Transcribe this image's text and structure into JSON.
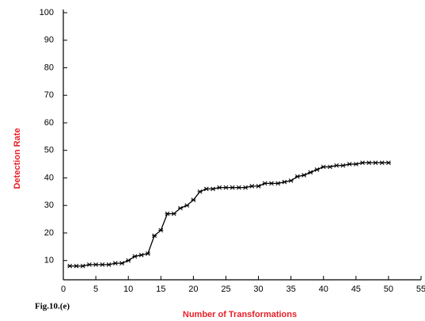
{
  "chart_data": {
    "type": "line",
    "x_label": "Number of Transformations",
    "y_label": "Detection Rate",
    "caption": "Fig.10.(e)",
    "x": [
      1,
      2,
      3,
      4,
      5,
      6,
      7,
      8,
      9,
      10,
      11,
      12,
      13,
      14,
      15,
      16,
      17,
      18,
      19,
      20,
      21,
      22,
      23,
      24,
      25,
      26,
      27,
      28,
      29,
      30,
      31,
      32,
      33,
      34,
      35,
      36,
      37,
      38,
      39,
      40,
      41,
      42,
      43,
      44,
      45,
      46,
      47,
      48,
      49,
      50
    ],
    "series": [
      {
        "color": "#000000",
        "values": [
          8,
          8,
          8,
          8.5,
          8.5,
          8.5,
          8.5,
          9,
          9,
          10,
          11.5,
          12,
          12.5,
          19,
          21,
          27,
          27,
          29,
          30,
          32,
          35,
          36,
          36,
          36.5,
          36.5,
          36.5,
          36.5,
          36.5,
          37,
          37,
          38,
          38,
          38,
          38.5,
          39,
          40.5,
          41,
          42,
          43,
          44,
          44,
          44.5,
          44.5,
          45,
          45,
          45.5,
          45.5,
          45.5,
          45.5,
          45.5
        ]
      }
    ],
    "xlim": [
      0,
      55
    ],
    "xticks": [
      0,
      5,
      10,
      15,
      20,
      25,
      30,
      35,
      40,
      45,
      50,
      55
    ],
    "ylim": [
      3,
      100
    ],
    "yticks": [
      10,
      20,
      30,
      40,
      50,
      60,
      70,
      80,
      90,
      100
    ],
    "label_color": "#e8202a"
  }
}
